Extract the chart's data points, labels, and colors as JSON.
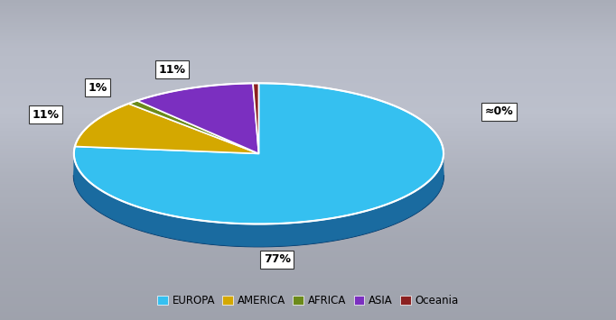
{
  "labels": [
    "EUROPA",
    "AMERICA",
    "AFRICA",
    "ASIA",
    "Oceania"
  ],
  "values": [
    77,
    11,
    1,
    11,
    0.5
  ],
  "display_pcts": [
    "77%",
    "11%",
    "1%",
    "11%",
    "≈0%"
  ],
  "colors_top": [
    "#35C0F0",
    "#D4A800",
    "#6B8A1A",
    "#7B2FC0",
    "#8B2020"
  ],
  "colors_side": [
    "#1A6BA0",
    "#8A6800",
    "#3A5A0A",
    "#4B0A90",
    "#5B0A0A"
  ],
  "edge_color": "#FFFFFF",
  "background_top": "#C8D0D8",
  "background_bottom": "#8898A8",
  "startangle": 90,
  "legend_labels": [
    "EUROPA",
    "AMERICA",
    "AFRICA",
    "ASIA",
    "Oceania"
  ],
  "legend_colors": [
    "#35C0F0",
    "#D4A800",
    "#6B8A1A",
    "#7B2FC0",
    "#8B2020"
  ]
}
